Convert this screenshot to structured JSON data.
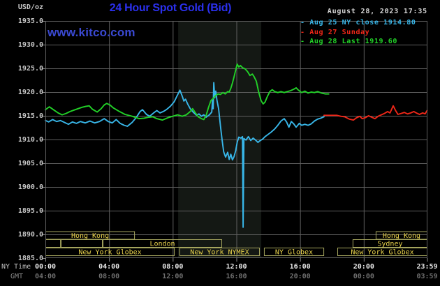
{
  "header": {
    "units": "USD/oz",
    "title": "24 Hour Spot Gold (Bid)",
    "datetime": "August 28, 2023 17:35",
    "watermark": "www.kitco.com"
  },
  "colors": {
    "title_blue": "#2b30ee",
    "watermark_blue": "#3a49d2",
    "background": "#000000",
    "grid": "#5f5f5f",
    "tick": "#888888",
    "band": "#141814",
    "session_border": "#a5a55e",
    "session_text": "#e8d24b",
    "cyan": "#38b6e8",
    "red": "#f02718",
    "green": "#22d128"
  },
  "legend": [
    {
      "text": "- Aug 25 NY close 1914.80",
      "color": "#38b6e8"
    },
    {
      "text": "- Aug 27 Sunday",
      "color": "#f02718"
    },
    {
      "text": "- Aug 28 Last 1919.60",
      "color": "#22d128"
    }
  ],
  "y_axis": {
    "labels": [
      "1935.0",
      "1930.0",
      "1925.0",
      "1920.0",
      "1915.0",
      "1910.0",
      "1905.0",
      "1900.0",
      "1895.0",
      "1890.0",
      "1885.0"
    ]
  },
  "x_axis": {
    "ny_label": "NY Time",
    "gmt_label": "GMT",
    "ticks": [
      {
        "h": 0,
        "ny": "00:00",
        "gmt": "04:00"
      },
      {
        "h": 4,
        "ny": "04:00",
        "gmt": "08:00"
      },
      {
        "h": 8,
        "ny": "08:00",
        "gmt": "12:00"
      },
      {
        "h": 12,
        "ny": "12:00",
        "gmt": "16:00"
      },
      {
        "h": 16,
        "ny": "16:00",
        "gmt": "20:00"
      },
      {
        "h": 20,
        "ny": "20:00",
        "gmt": "00:00"
      },
      {
        "h": 23.98,
        "ny": "23:59",
        "gmt": "03:59"
      }
    ]
  },
  "sessions": {
    "rows": [
      {
        "boxes": [
          {
            "label": "Hong Kong",
            "start": 0,
            "end": 5.62
          },
          {
            "label": "Hong Kong",
            "start": 20.75,
            "end": 24
          }
        ]
      },
      {
        "boxes": [
          {
            "label": "",
            "start": 0,
            "end": 0.97
          },
          {
            "label": "",
            "start": 0.97,
            "end": 3.6
          },
          {
            "label": "London",
            "start": 3.6,
            "end": 11.1
          },
          {
            "label": "Sydney",
            "start": 19.3,
            "end": 24
          }
        ]
      },
      {
        "boxes": [
          {
            "label": "New York Globex",
            "start": 0,
            "end": 8.12
          },
          {
            "label": "New York NYMEX",
            "start": 8.42,
            "end": 13.47
          },
          {
            "label": "NY Globex",
            "start": 13.73,
            "end": 17.51
          },
          {
            "label": "New York Globex",
            "start": 18.34,
            "end": 24
          }
        ]
      }
    ]
  },
  "chart_data": {
    "type": "line",
    "title": "24 Hour Spot Gold (Bid)",
    "xlabel": "NY Time (hours 00:00-23:59)",
    "ylabel": "USD/oz",
    "xlim": [
      0,
      24
    ],
    "ylim": [
      1885,
      1935
    ],
    "grid": true,
    "legend_position": "top-right",
    "highlight_band_hours": [
      8.34,
      13.56
    ],
    "series": [
      {
        "name": "Aug 25 NY close 1914.80",
        "color": "#38b6e8",
        "points": [
          [
            0,
            1914.0
          ],
          [
            0.2,
            1913.7
          ],
          [
            0.45,
            1914.2
          ],
          [
            0.7,
            1913.8
          ],
          [
            0.95,
            1914.0
          ],
          [
            1.2,
            1913.6
          ],
          [
            1.45,
            1913.2
          ],
          [
            1.7,
            1913.7
          ],
          [
            1.95,
            1913.4
          ],
          [
            2.2,
            1913.8
          ],
          [
            2.5,
            1913.5
          ],
          [
            2.8,
            1913.9
          ],
          [
            3.1,
            1913.5
          ],
          [
            3.4,
            1913.8
          ],
          [
            3.7,
            1914.4
          ],
          [
            3.95,
            1913.8
          ],
          [
            4.2,
            1913.5
          ],
          [
            4.45,
            1914.2
          ],
          [
            4.7,
            1913.4
          ],
          [
            4.95,
            1913.0
          ],
          [
            5.15,
            1912.8
          ],
          [
            5.45,
            1913.6
          ],
          [
            5.7,
            1914.6
          ],
          [
            5.95,
            1915.9
          ],
          [
            6.1,
            1916.3
          ],
          [
            6.35,
            1915.3
          ],
          [
            6.55,
            1914.9
          ],
          [
            6.8,
            1915.6
          ],
          [
            7.0,
            1916.1
          ],
          [
            7.2,
            1915.6
          ],
          [
            7.4,
            1915.9
          ],
          [
            7.6,
            1916.3
          ],
          [
            7.85,
            1917.0
          ],
          [
            8.1,
            1918.0
          ],
          [
            8.3,
            1919.4
          ],
          [
            8.45,
            1920.4
          ],
          [
            8.6,
            1919.1
          ],
          [
            8.7,
            1918.1
          ],
          [
            8.8,
            1918.5
          ],
          [
            8.95,
            1917.4
          ],
          [
            9.1,
            1916.5
          ],
          [
            9.3,
            1915.7
          ],
          [
            9.5,
            1915.1
          ],
          [
            9.65,
            1915.4
          ],
          [
            9.8,
            1914.9
          ],
          [
            9.95,
            1915.2
          ],
          [
            10.1,
            1914.7
          ],
          [
            10.3,
            1915.2
          ],
          [
            10.45,
            1915.8
          ],
          [
            10.5,
            1918.3
          ],
          [
            10.54,
            1916.5
          ],
          [
            10.58,
            1922.0
          ],
          [
            10.64,
            1918.8
          ],
          [
            10.7,
            1920.2
          ],
          [
            10.78,
            1918.2
          ],
          [
            10.88,
            1916.5
          ],
          [
            11.0,
            1912.8
          ],
          [
            11.1,
            1909.9
          ],
          [
            11.2,
            1907.4
          ],
          [
            11.32,
            1906.3
          ],
          [
            11.45,
            1907.3
          ],
          [
            11.55,
            1905.8
          ],
          [
            11.65,
            1906.9
          ],
          [
            11.75,
            1905.7
          ],
          [
            11.85,
            1906.4
          ],
          [
            11.95,
            1907.6
          ],
          [
            12.05,
            1909.4
          ],
          [
            12.15,
            1910.5
          ],
          [
            12.28,
            1910.3
          ],
          [
            12.38,
            1910.6
          ],
          [
            12.42,
            1891.5
          ],
          [
            12.47,
            1910.2
          ],
          [
            12.6,
            1909.9
          ],
          [
            12.75,
            1910.6
          ],
          [
            12.9,
            1909.8
          ],
          [
            13.05,
            1910.3
          ],
          [
            13.2,
            1909.9
          ],
          [
            13.35,
            1909.4
          ],
          [
            13.5,
            1909.8
          ],
          [
            13.65,
            1910.1
          ],
          [
            13.8,
            1910.6
          ],
          [
            14.0,
            1911.1
          ],
          [
            14.2,
            1911.6
          ],
          [
            14.4,
            1912.2
          ],
          [
            14.6,
            1913.0
          ],
          [
            14.8,
            1913.9
          ],
          [
            15.0,
            1914.4
          ],
          [
            15.15,
            1913.7
          ],
          [
            15.3,
            1912.6
          ],
          [
            15.45,
            1913.8
          ],
          [
            15.6,
            1913.3
          ],
          [
            15.75,
            1912.6
          ],
          [
            15.95,
            1913.4
          ],
          [
            16.1,
            1913.0
          ],
          [
            16.3,
            1913.2
          ],
          [
            16.5,
            1913.0
          ],
          [
            16.7,
            1913.3
          ],
          [
            16.9,
            1913.9
          ],
          [
            17.1,
            1914.3
          ],
          [
            17.3,
            1914.5
          ],
          [
            17.5,
            1914.8
          ]
        ]
      },
      {
        "name": "Aug 27 Sunday",
        "color": "#f02718",
        "points": [
          [
            17.5,
            1915.1
          ],
          [
            18.3,
            1915.1
          ],
          [
            18.55,
            1914.9
          ],
          [
            18.8,
            1914.8
          ],
          [
            19.1,
            1914.3
          ],
          [
            19.35,
            1914.1
          ],
          [
            19.55,
            1914.6
          ],
          [
            19.75,
            1914.9
          ],
          [
            19.9,
            1914.4
          ],
          [
            20.1,
            1914.6
          ],
          [
            20.3,
            1915.0
          ],
          [
            20.5,
            1914.7
          ],
          [
            20.7,
            1914.4
          ],
          [
            20.9,
            1914.9
          ],
          [
            21.1,
            1915.2
          ],
          [
            21.3,
            1915.5
          ],
          [
            21.5,
            1915.9
          ],
          [
            21.65,
            1915.6
          ],
          [
            21.85,
            1917.1
          ],
          [
            22.0,
            1916.1
          ],
          [
            22.15,
            1915.3
          ],
          [
            22.35,
            1915.5
          ],
          [
            22.55,
            1915.7
          ],
          [
            22.75,
            1915.4
          ],
          [
            22.95,
            1915.6
          ],
          [
            23.15,
            1915.9
          ],
          [
            23.3,
            1915.6
          ],
          [
            23.5,
            1915.3
          ],
          [
            23.7,
            1915.6
          ],
          [
            23.85,
            1915.4
          ],
          [
            23.98,
            1916.1
          ]
        ]
      },
      {
        "name": "Aug 28 Last 1919.60",
        "color": "#22d128",
        "points": [
          [
            0,
            1916.3
          ],
          [
            0.25,
            1916.9
          ],
          [
            0.5,
            1916.3
          ],
          [
            0.8,
            1915.6
          ],
          [
            1.05,
            1915.2
          ],
          [
            1.3,
            1915.5
          ],
          [
            1.55,
            1915.9
          ],
          [
            1.8,
            1916.2
          ],
          [
            2.05,
            1916.5
          ],
          [
            2.3,
            1916.8
          ],
          [
            2.55,
            1917.0
          ],
          [
            2.75,
            1917.1
          ],
          [
            2.95,
            1916.4
          ],
          [
            3.25,
            1915.8
          ],
          [
            3.5,
            1916.5
          ],
          [
            3.7,
            1917.3
          ],
          [
            3.85,
            1917.6
          ],
          [
            4.05,
            1917.3
          ],
          [
            4.25,
            1916.7
          ],
          [
            4.6,
            1916.0
          ],
          [
            5.0,
            1915.3
          ],
          [
            5.45,
            1914.9
          ],
          [
            5.9,
            1914.4
          ],
          [
            6.2,
            1914.5
          ],
          [
            6.5,
            1914.7
          ],
          [
            6.75,
            1914.8
          ],
          [
            7.0,
            1914.4
          ],
          [
            7.35,
            1914.1
          ],
          [
            7.7,
            1914.6
          ],
          [
            8.0,
            1914.9
          ],
          [
            8.3,
            1915.2
          ],
          [
            8.6,
            1914.9
          ],
          [
            8.85,
            1915.2
          ],
          [
            9.1,
            1915.9
          ],
          [
            9.25,
            1916.5
          ],
          [
            9.45,
            1915.5
          ],
          [
            9.6,
            1914.8
          ],
          [
            9.8,
            1914.4
          ],
          [
            9.95,
            1914.2
          ],
          [
            10.1,
            1915.1
          ],
          [
            10.25,
            1916.8
          ],
          [
            10.4,
            1918.2
          ],
          [
            10.55,
            1918.7
          ],
          [
            10.7,
            1919.3
          ],
          [
            10.85,
            1919.6
          ],
          [
            11.0,
            1919.5
          ],
          [
            11.15,
            1919.9
          ],
          [
            11.3,
            1919.6
          ],
          [
            11.45,
            1920.1
          ],
          [
            11.55,
            1920.0
          ],
          [
            11.65,
            1920.8
          ],
          [
            11.75,
            1921.9
          ],
          [
            11.85,
            1923.2
          ],
          [
            11.95,
            1924.6
          ],
          [
            12.05,
            1925.9
          ],
          [
            12.15,
            1925.3
          ],
          [
            12.25,
            1925.6
          ],
          [
            12.4,
            1925.1
          ],
          [
            12.55,
            1924.9
          ],
          [
            12.7,
            1924.3
          ],
          [
            12.85,
            1923.5
          ],
          [
            13.0,
            1923.8
          ],
          [
            13.1,
            1923.3
          ],
          [
            13.25,
            1922.3
          ],
          [
            13.4,
            1920.0
          ],
          [
            13.55,
            1918.2
          ],
          [
            13.68,
            1917.5
          ],
          [
            13.8,
            1917.9
          ],
          [
            13.95,
            1919.1
          ],
          [
            14.1,
            1920.1
          ],
          [
            14.25,
            1920.5
          ],
          [
            14.4,
            1920.1
          ],
          [
            14.6,
            1919.9
          ],
          [
            14.8,
            1920.1
          ],
          [
            15.0,
            1919.9
          ],
          [
            15.2,
            1920.1
          ],
          [
            15.4,
            1920.3
          ],
          [
            15.6,
            1920.6
          ],
          [
            15.75,
            1920.9
          ],
          [
            15.9,
            1920.4
          ],
          [
            16.1,
            1919.9
          ],
          [
            16.3,
            1920.2
          ],
          [
            16.5,
            1919.8
          ],
          [
            16.7,
            1920.0
          ],
          [
            16.9,
            1919.9
          ],
          [
            17.1,
            1920.1
          ],
          [
            17.35,
            1919.8
          ],
          [
            17.6,
            1919.6
          ],
          [
            17.8,
            1919.6
          ]
        ]
      }
    ]
  }
}
